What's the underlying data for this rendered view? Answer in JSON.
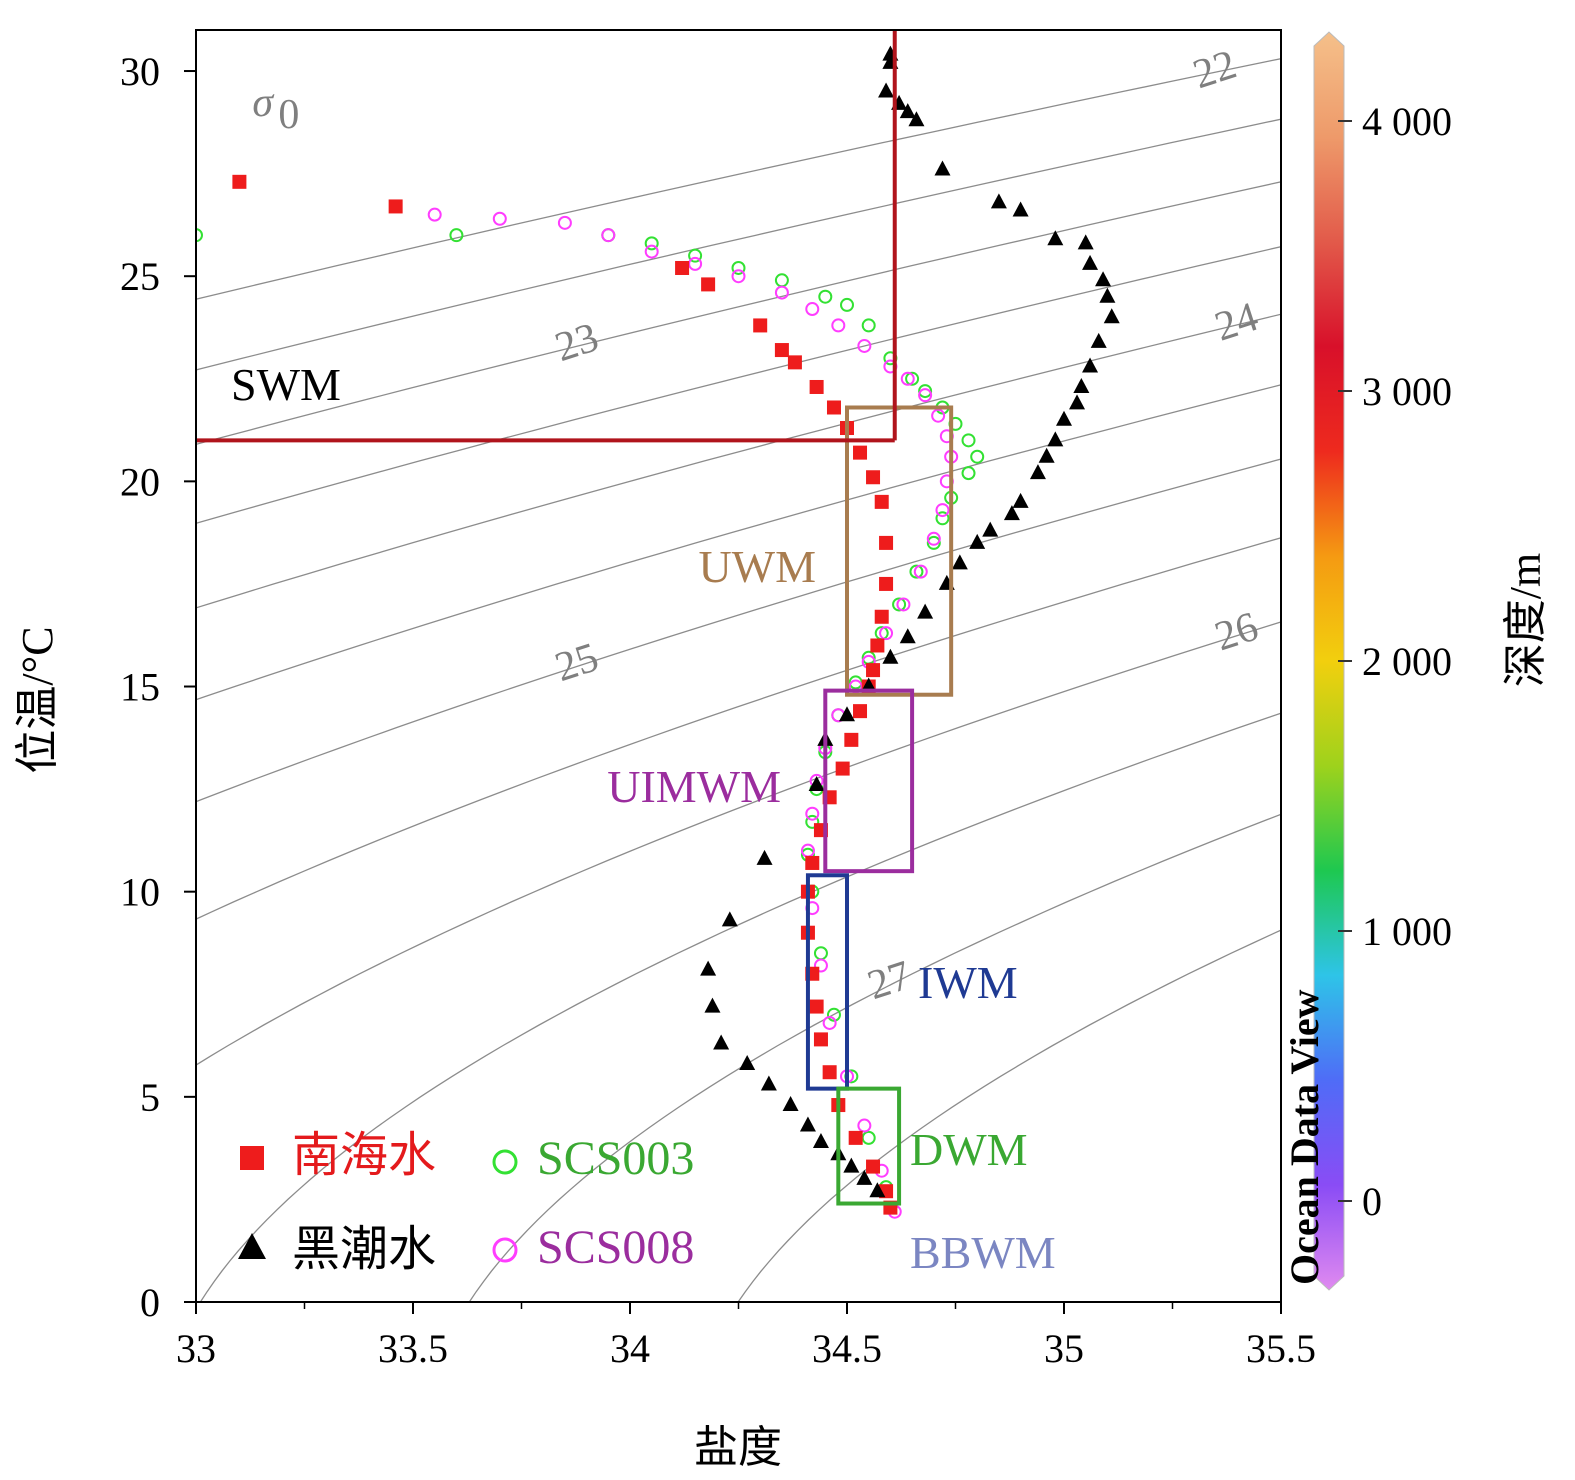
{
  "chart_data": {
    "type": "scatter",
    "xlabel": "盐度",
    "ylabel": "位温/°C",
    "xlim": [
      33,
      35.5
    ],
    "ylim": [
      0,
      31
    ],
    "x_ticks": [
      "33",
      "33.5",
      "34",
      "34.5",
      "35",
      "35.5"
    ],
    "y_ticks": [
      "0",
      "5",
      "10",
      "15",
      "20",
      "25",
      "30"
    ],
    "x_tick_values": [
      33,
      33.5,
      34,
      34.5,
      35,
      35.5
    ],
    "y_tick_values": [
      0,
      5,
      10,
      15,
      20,
      25,
      30
    ],
    "colorbar": {
      "label": "深度/m",
      "ticks": [
        "0",
        "1 000",
        "2 000",
        "3 000",
        "4 000"
      ],
      "tick_values": [
        0,
        1000,
        2000,
        3000,
        4000
      ],
      "range": [
        -300,
        4300
      ],
      "watermark": "Ocean Data View",
      "colors": [
        "#e08af0",
        "#8a4cf5",
        "#4f6cf7",
        "#2ec4e8",
        "#1ec850",
        "#9ed21c",
        "#f2cf0e",
        "#f59a12",
        "#ee2a1e",
        "#d8102a",
        "#e25a4a",
        "#ee9a6a",
        "#f5c08a"
      ]
    },
    "sigma_symbol": "σ",
    "sigma_subscript": "0",
    "isopycnals": [
      {
        "label": "22",
        "sigma": 22.0
      },
      {
        "label": "",
        "sigma": 22.5
      },
      {
        "label": "23",
        "sigma": 23.0
      },
      {
        "label": "",
        "sigma": 23.5
      },
      {
        "label": "24",
        "sigma": 24.0
      },
      {
        "label": "",
        "sigma": 24.5
      },
      {
        "label": "25",
        "sigma": 25.0
      },
      {
        "label": "",
        "sigma": 25.5
      },
      {
        "label": "26",
        "sigma": 26.0
      },
      {
        "label": "",
        "sigma": 26.5
      },
      {
        "label": "27",
        "sigma": 27.0
      },
      {
        "label": "",
        "sigma": 27.5
      }
    ],
    "water_masses": [
      {
        "label": "SWM",
        "color": "#000000"
      },
      {
        "label": "UWM",
        "color": "#a87c4f",
        "x": [
          34.5,
          34.74
        ],
        "y": [
          14.8,
          21.8
        ]
      },
      {
        "label": "UIMWM",
        "color": "#9b2d9e",
        "x": [
          34.45,
          34.65
        ],
        "y": [
          10.5,
          14.9
        ]
      },
      {
        "label": "IWM",
        "color": "#1f3a93",
        "x": [
          34.41,
          34.5
        ],
        "y": [
          5.2,
          10.4
        ]
      },
      {
        "label": "DWM",
        "color": "#3aa832",
        "x": [
          34.48,
          34.62
        ],
        "y": [
          2.4,
          5.2
        ]
      },
      {
        "label": "BBWM",
        "color": "#7b86c2"
      }
    ],
    "swm_boundary": {
      "color": "#b0141c",
      "salinity": 34.61,
      "temperature": 21.0
    },
    "series": [
      {
        "name": "南海水",
        "marker": "square",
        "color": "#ee1c1c",
        "x": [
          33.1,
          33.46,
          34.12,
          34.18,
          34.3,
          34.35,
          34.38,
          34.43,
          34.47,
          34.5,
          34.53,
          34.56,
          34.58,
          34.59,
          34.59,
          34.58,
          34.57,
          34.56,
          34.55,
          34.53,
          34.51,
          34.49,
          34.46,
          34.44,
          34.42,
          34.41,
          34.41,
          34.42,
          34.43,
          34.44,
          34.46,
          34.48,
          34.52,
          34.56,
          34.59,
          34.6
        ],
        "y": [
          27.3,
          26.7,
          25.2,
          24.8,
          23.8,
          23.2,
          22.9,
          22.3,
          21.8,
          21.3,
          20.7,
          20.1,
          19.5,
          18.5,
          17.5,
          16.7,
          16.0,
          15.4,
          15.0,
          14.4,
          13.7,
          13.0,
          12.3,
          11.5,
          10.7,
          10.0,
          9.0,
          8.0,
          7.2,
          6.4,
          5.6,
          4.8,
          4.0,
          3.3,
          2.7,
          2.3
        ]
      },
      {
        "name": "黑潮水",
        "marker": "triangle",
        "color": "#000000",
        "x": [
          34.6,
          34.6,
          34.59,
          34.62,
          34.64,
          34.66,
          34.72,
          34.85,
          34.9,
          34.98,
          35.05,
          35.06,
          35.09,
          35.1,
          35.11,
          35.08,
          35.06,
          35.04,
          35.03,
          35.0,
          34.98,
          34.96,
          34.94,
          34.9,
          34.88,
          34.83,
          34.8,
          34.76,
          34.73,
          34.68,
          34.64,
          34.6,
          34.55,
          34.5,
          34.45,
          34.43,
          34.31,
          34.23,
          34.18,
          34.19,
          34.21,
          34.27,
          34.32,
          34.37,
          34.41,
          34.44,
          34.48,
          34.51,
          34.54,
          34.57
        ],
        "y": [
          30.4,
          30.2,
          29.5,
          29.2,
          29.0,
          28.8,
          27.6,
          26.8,
          26.6,
          25.9,
          25.8,
          25.3,
          24.9,
          24.5,
          24.0,
          23.4,
          22.8,
          22.3,
          21.9,
          21.5,
          21.0,
          20.6,
          20.2,
          19.5,
          19.2,
          18.8,
          18.5,
          18.0,
          17.5,
          16.8,
          16.2,
          15.7,
          15.0,
          14.3,
          13.7,
          12.6,
          10.8,
          9.3,
          8.1,
          7.2,
          6.3,
          5.8,
          5.3,
          4.8,
          4.3,
          3.9,
          3.6,
          3.3,
          3.0,
          2.7
        ]
      },
      {
        "name": "SCS003",
        "marker": "circle",
        "color": "#33e133",
        "x": [
          33.0,
          33.6,
          33.95,
          34.05,
          34.15,
          34.25,
          34.35,
          34.45,
          34.5,
          34.55,
          34.6,
          34.65,
          34.68,
          34.72,
          34.75,
          34.78,
          34.8,
          34.78,
          34.74,
          34.72,
          34.7,
          34.66,
          34.62,
          34.58,
          34.55,
          34.52,
          34.48,
          34.45,
          34.43,
          34.42,
          34.41,
          34.42,
          34.44,
          34.47,
          34.51,
          34.55,
          34.59
        ],
        "y": [
          26.0,
          26.0,
          26.0,
          25.8,
          25.5,
          25.2,
          24.9,
          24.5,
          24.3,
          23.8,
          23.0,
          22.5,
          22.2,
          21.8,
          21.4,
          21.0,
          20.6,
          20.2,
          19.6,
          19.1,
          18.5,
          17.8,
          17.0,
          16.3,
          15.7,
          15.1,
          14.3,
          13.4,
          12.5,
          11.7,
          10.9,
          10.0,
          8.5,
          7.0,
          5.5,
          4.0,
          2.8
        ]
      },
      {
        "name": "SCS008",
        "marker": "circle",
        "color": "#ff3dff",
        "x": [
          33.55,
          33.7,
          33.85,
          33.95,
          34.05,
          34.15,
          34.25,
          34.35,
          34.42,
          34.48,
          34.54,
          34.6,
          34.64,
          34.68,
          34.71,
          34.73,
          34.74,
          34.73,
          34.72,
          34.7,
          34.67,
          34.63,
          34.59,
          34.55,
          34.52,
          34.48,
          34.45,
          34.43,
          34.42,
          34.41,
          34.42,
          34.44,
          34.46,
          34.5,
          34.54,
          34.58,
          34.61
        ],
        "y": [
          26.5,
          26.4,
          26.3,
          26.0,
          25.6,
          25.3,
          25.0,
          24.6,
          24.2,
          23.8,
          23.3,
          22.8,
          22.5,
          22.1,
          21.6,
          21.1,
          20.6,
          20.0,
          19.3,
          18.6,
          17.8,
          17.0,
          16.3,
          15.6,
          15.0,
          14.3,
          13.5,
          12.7,
          11.9,
          11.0,
          9.6,
          8.2,
          6.8,
          5.5,
          4.3,
          3.2,
          2.2
        ]
      }
    ]
  }
}
